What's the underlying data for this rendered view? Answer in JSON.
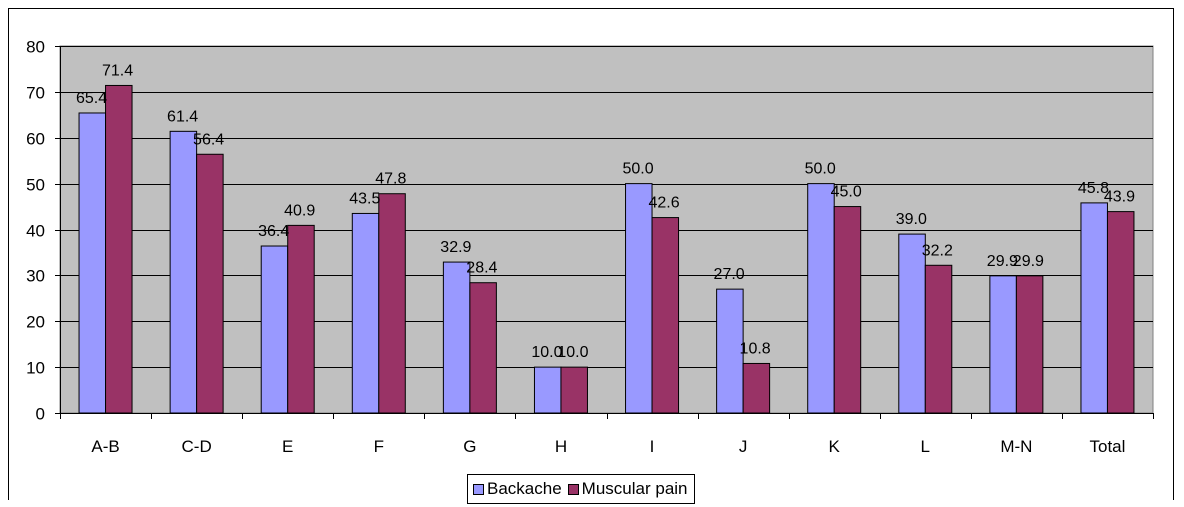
{
  "chart_data": {
    "type": "bar",
    "categories": [
      "A-B",
      "C-D",
      "E",
      "F",
      "G",
      "H",
      "I",
      "J",
      "K",
      "L",
      "M-N",
      "Total"
    ],
    "series": [
      {
        "name": "Backache",
        "color": "#9999ff",
        "values": [
          65.4,
          61.4,
          36.4,
          43.5,
          32.9,
          10.0,
          50.0,
          27.0,
          50.0,
          39.0,
          29.9,
          45.8
        ],
        "labels": [
          "65.4",
          "61.4",
          "36.4",
          "43.5",
          "32.9",
          "10.0",
          "50.0",
          "27.0",
          "50.0",
          "39.0",
          "29.9",
          "45.8"
        ]
      },
      {
        "name": "Muscular pain",
        "color": "#993366",
        "values": [
          71.4,
          56.4,
          40.9,
          47.8,
          28.4,
          10.0,
          42.6,
          10.8,
          45.0,
          32.2,
          29.9,
          43.9
        ],
        "labels": [
          "71.4",
          "56.4",
          "40.9",
          "47.8",
          "28.4",
          "10.0",
          "42.6",
          "10.8",
          "45.0",
          "32.2",
          "29.9",
          "43.9"
        ]
      }
    ],
    "ylim": [
      0,
      80
    ],
    "yticks": [
      "0",
      "10",
      "20",
      "30",
      "40",
      "50",
      "60",
      "70",
      "80"
    ],
    "grid": true,
    "plot_background": "#c0c0c0",
    "legend_position": "bottom"
  }
}
